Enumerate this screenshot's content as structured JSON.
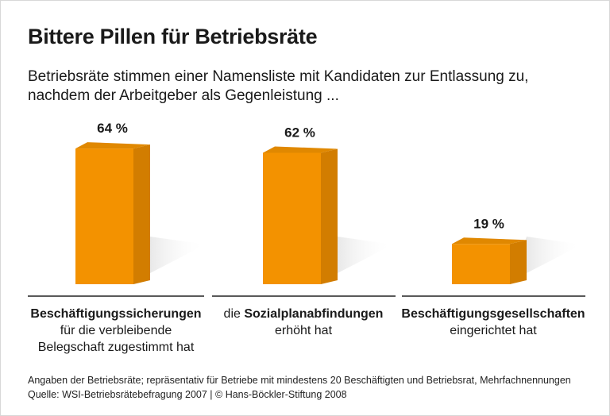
{
  "title": "Bittere Pillen für Betriebsräte",
  "subtitle_line1": "Betriebsräte stimmen einer Namensliste mit Kandidaten zur Entlassung zu,",
  "subtitle_line2": "nachdem der Arbeitgeber als Gegenleistung ...",
  "chart_data": {
    "type": "bar",
    "categories": [
      "Beschäftigungssicherungen für die verbleibende Belegschaft zugestimmt hat",
      "die Sozialplanabfindungen erhöht hat",
      "Beschäftigungsgesellschaften eingerichtet hat"
    ],
    "values": [
      64,
      62,
      19
    ],
    "value_labels": [
      "64 %",
      "62 %",
      "19 %"
    ],
    "unit": "%",
    "bar_color": "#f39200",
    "grid": false
  },
  "category_labels": [
    {
      "bold": "Beschäftigungssicherungen",
      "rest1": "für die verbleibende",
      "rest2": "Belegschaft zugestimmt hat"
    },
    {
      "pre": "die ",
      "bold": "Sozialplanabfindungen",
      "rest1": "erhöht hat"
    },
    {
      "bold": "Beschäftigungsgesellschaften",
      "rest1": "eingerichtet hat"
    }
  ],
  "footer": {
    "note": "Angaben der Betriebsräte; repräsentativ für Betriebe mit mindestens 20 Beschäftigten und Betriebsrat, Mehrfachnennungen",
    "source": "Quelle: WSI-Betriebsrätebefragung 2007 | © Hans-Böckler-Stiftung 2008"
  }
}
